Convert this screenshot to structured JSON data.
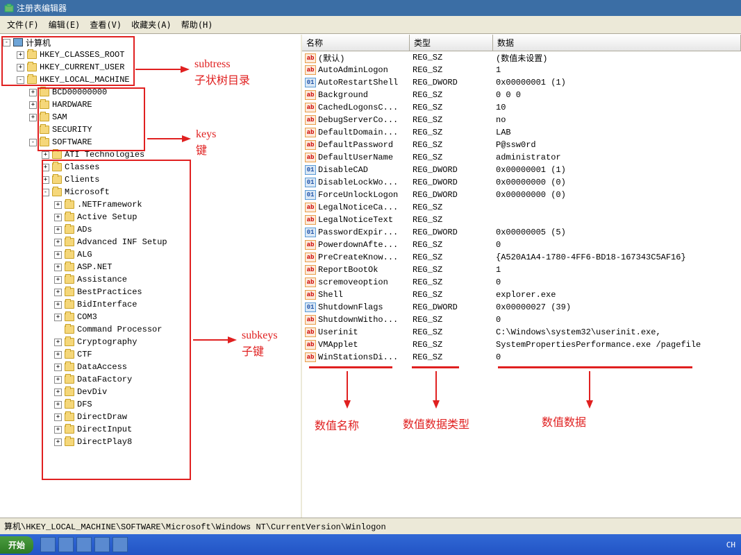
{
  "window": {
    "title": "注册表编辑器"
  },
  "menu": {
    "file": "文件(F)",
    "edit": "编辑(E)",
    "view": "查看(V)",
    "fav": "收藏夹(A)",
    "help": "帮助(H)"
  },
  "tree": {
    "root": "计算机",
    "hives": [
      {
        "label": "HKEY_CLASSES_ROOT",
        "exp": "+",
        "indent": 1
      },
      {
        "label": "HKEY_CURRENT_USER",
        "exp": "+",
        "indent": 1
      },
      {
        "label": "HKEY_LOCAL_MACHINE",
        "exp": "-",
        "indent": 1
      },
      {
        "label": "BCD00000000",
        "exp": "+",
        "indent": 2
      },
      {
        "label": "HARDWARE",
        "exp": "+",
        "indent": 2
      },
      {
        "label": "SAM",
        "exp": "+",
        "indent": 2
      },
      {
        "label": "SECURITY",
        "exp": "",
        "indent": 2
      },
      {
        "label": "SOFTWARE",
        "exp": "-",
        "indent": 2
      },
      {
        "label": "ATI Technologies",
        "exp": "+",
        "indent": 3
      },
      {
        "label": "Classes",
        "exp": "+",
        "indent": 3
      },
      {
        "label": "Clients",
        "exp": "+",
        "indent": 3
      },
      {
        "label": "Microsoft",
        "exp": "-",
        "indent": 3
      },
      {
        "label": ".NETFramework",
        "exp": "+",
        "indent": 4
      },
      {
        "label": "Active Setup",
        "exp": "+",
        "indent": 4
      },
      {
        "label": "ADs",
        "exp": "+",
        "indent": 4
      },
      {
        "label": "Advanced INF Setup",
        "exp": "+",
        "indent": 4
      },
      {
        "label": "ALG",
        "exp": "+",
        "indent": 4
      },
      {
        "label": "ASP.NET",
        "exp": "+",
        "indent": 4
      },
      {
        "label": "Assistance",
        "exp": "+",
        "indent": 4
      },
      {
        "label": "BestPractices",
        "exp": "+",
        "indent": 4
      },
      {
        "label": "BidInterface",
        "exp": "+",
        "indent": 4
      },
      {
        "label": "COM3",
        "exp": "+",
        "indent": 4
      },
      {
        "label": "Command Processor",
        "exp": "",
        "indent": 4
      },
      {
        "label": "Cryptography",
        "exp": "+",
        "indent": 4
      },
      {
        "label": "CTF",
        "exp": "+",
        "indent": 4
      },
      {
        "label": "DataAccess",
        "exp": "+",
        "indent": 4
      },
      {
        "label": "DataFactory",
        "exp": "+",
        "indent": 4
      },
      {
        "label": "DevDiv",
        "exp": "+",
        "indent": 4
      },
      {
        "label": "DFS",
        "exp": "+",
        "indent": 4
      },
      {
        "label": "DirectDraw",
        "exp": "+",
        "indent": 4
      },
      {
        "label": "DirectInput",
        "exp": "+",
        "indent": 4
      },
      {
        "label": "DirectPlay8",
        "exp": "+",
        "indent": 4
      }
    ]
  },
  "columns": {
    "name": "名称",
    "type": "类型",
    "data": "数据"
  },
  "values": [
    {
      "name": "(默认)",
      "type": "REG_SZ",
      "data": "(数值未设置)",
      "icon": "sz"
    },
    {
      "name": "AutoAdminLogon",
      "type": "REG_SZ",
      "data": "1",
      "icon": "sz"
    },
    {
      "name": "AutoRestartShell",
      "type": "REG_DWORD",
      "data": "0x00000001 (1)",
      "icon": "dw"
    },
    {
      "name": "Background",
      "type": "REG_SZ",
      "data": "0 0 0",
      "icon": "sz"
    },
    {
      "name": "CachedLogonsC...",
      "type": "REG_SZ",
      "data": "10",
      "icon": "sz"
    },
    {
      "name": "DebugServerCo...",
      "type": "REG_SZ",
      "data": "no",
      "icon": "sz"
    },
    {
      "name": "DefaultDomain...",
      "type": "REG_SZ",
      "data": "LAB",
      "icon": "sz"
    },
    {
      "name": "DefaultPassword",
      "type": "REG_SZ",
      "data": "P@ssw0rd",
      "icon": "sz"
    },
    {
      "name": "DefaultUserName",
      "type": "REG_SZ",
      "data": "administrator",
      "icon": "sz"
    },
    {
      "name": "DisableCAD",
      "type": "REG_DWORD",
      "data": "0x00000001 (1)",
      "icon": "dw"
    },
    {
      "name": "DisableLockWo...",
      "type": "REG_DWORD",
      "data": "0x00000000 (0)",
      "icon": "dw"
    },
    {
      "name": "ForceUnlockLogon",
      "type": "REG_DWORD",
      "data": "0x00000000 (0)",
      "icon": "dw"
    },
    {
      "name": "LegalNoticeCa...",
      "type": "REG_SZ",
      "data": "",
      "icon": "sz"
    },
    {
      "name": "LegalNoticeText",
      "type": "REG_SZ",
      "data": "",
      "icon": "sz"
    },
    {
      "name": "PasswordExpir...",
      "type": "REG_DWORD",
      "data": "0x00000005 (5)",
      "icon": "dw"
    },
    {
      "name": "PowerdownAfte...",
      "type": "REG_SZ",
      "data": "0",
      "icon": "sz"
    },
    {
      "name": "PreCreateKnow...",
      "type": "REG_SZ",
      "data": "{A520A1A4-1780-4FF6-BD18-167343C5AF16}",
      "icon": "sz"
    },
    {
      "name": "ReportBootOk",
      "type": "REG_SZ",
      "data": "1",
      "icon": "sz"
    },
    {
      "name": "scremoveoption",
      "type": "REG_SZ",
      "data": "0",
      "icon": "sz"
    },
    {
      "name": "Shell",
      "type": "REG_SZ",
      "data": "explorer.exe",
      "icon": "sz"
    },
    {
      "name": "ShutdownFlags",
      "type": "REG_DWORD",
      "data": "0x00000027 (39)",
      "icon": "dw"
    },
    {
      "name": "ShutdownWitho...",
      "type": "REG_SZ",
      "data": "0",
      "icon": "sz"
    },
    {
      "name": "Userinit",
      "type": "REG_SZ",
      "data": "C:\\Windows\\system32\\userinit.exe,",
      "icon": "sz"
    },
    {
      "name": "VMApplet",
      "type": "REG_SZ",
      "data": "SystemPropertiesPerformance.exe /pagefile",
      "icon": "sz"
    },
    {
      "name": "WinStationsDi...",
      "type": "REG_SZ",
      "data": "0",
      "icon": "sz"
    }
  ],
  "statusbar": "算机\\HKEY_LOCAL_MACHINE\\SOFTWARE\\Microsoft\\Windows NT\\CurrentVersion\\Winlogon",
  "taskbar": {
    "start": "开始",
    "right": "CH"
  },
  "annotations": {
    "a1": "subtress",
    "a1b": "子状树目录",
    "a2": "keys",
    "a2b": "键",
    "a3": "subkeys",
    "a3b": "子键",
    "a4": "数值名称",
    "a5": "数值数据类型",
    "a6": "数值数据"
  },
  "colors": {
    "red": "#e02020"
  }
}
